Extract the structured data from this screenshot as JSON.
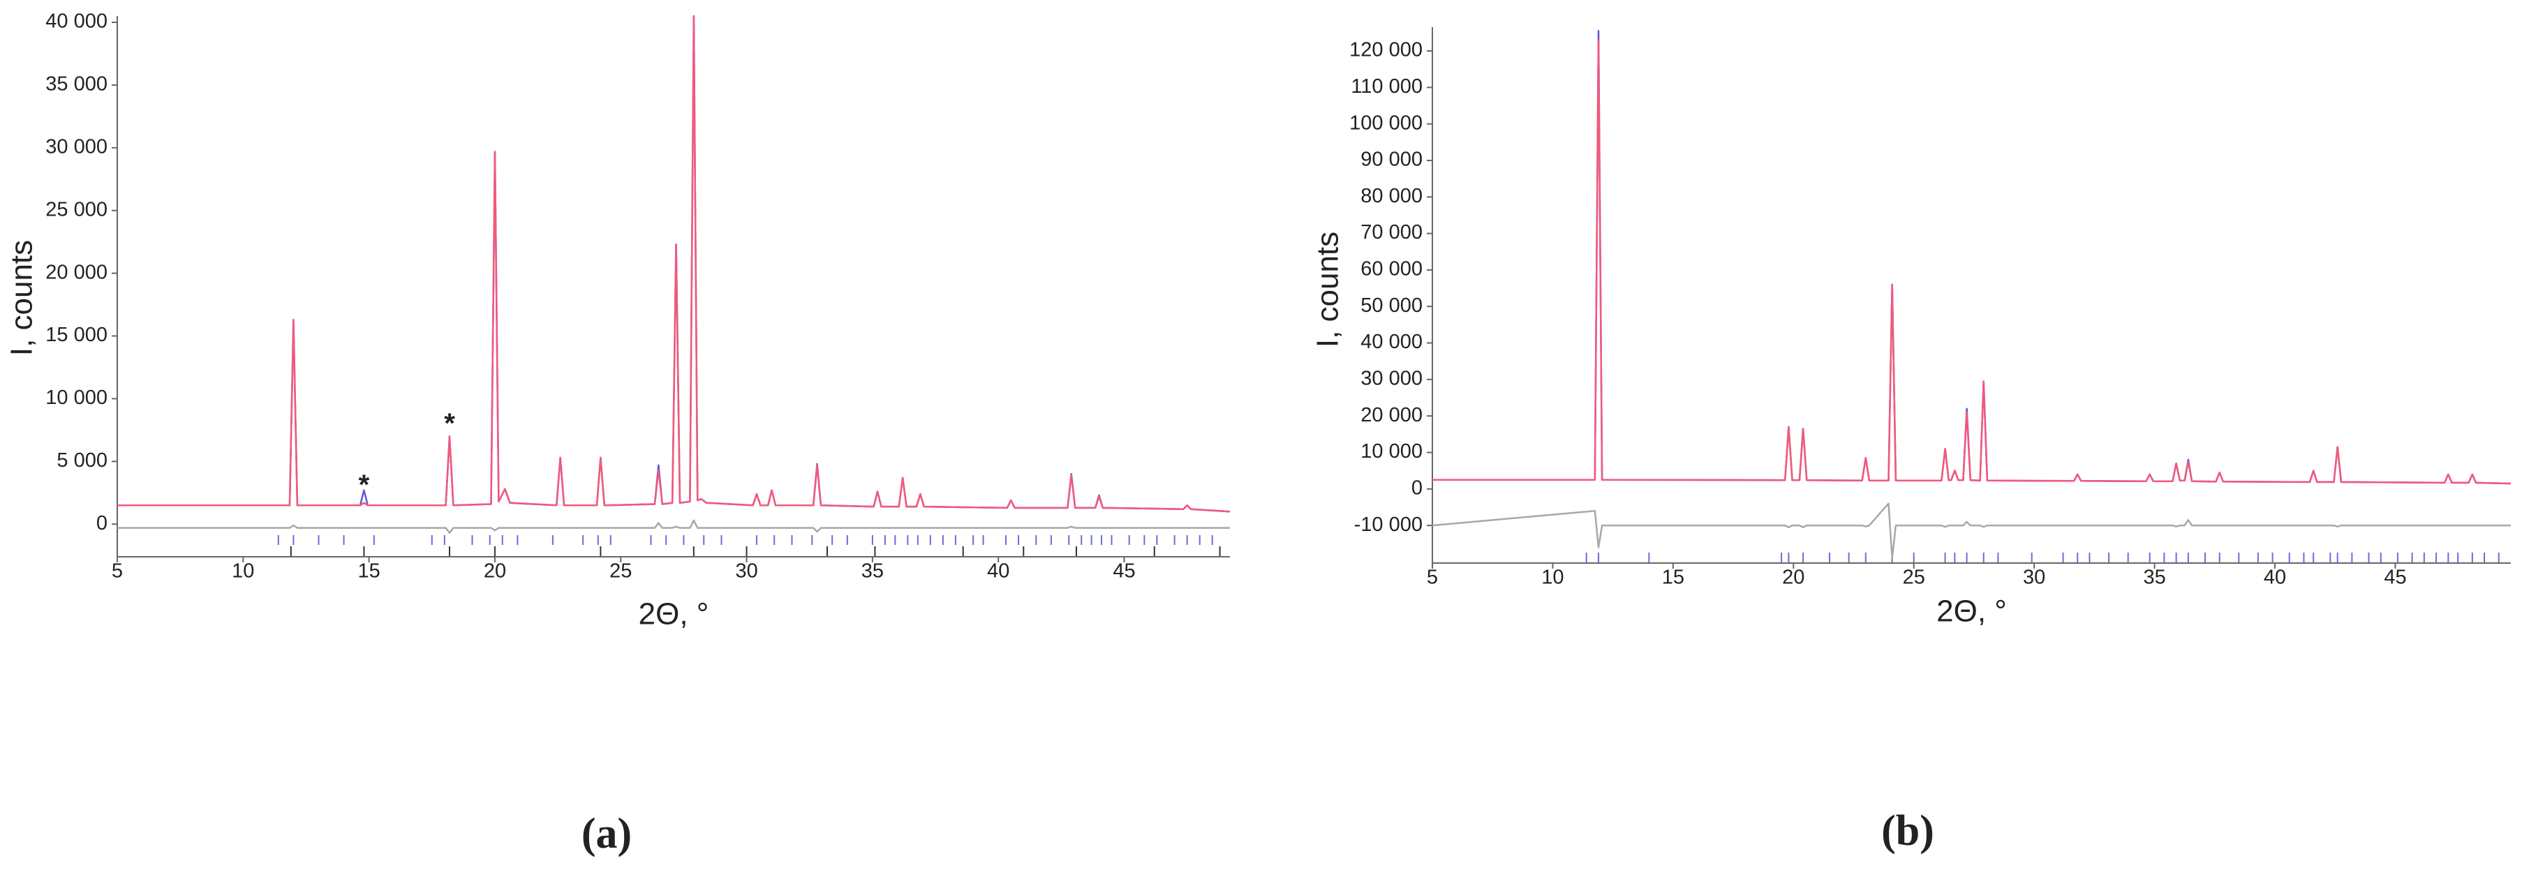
{
  "chart_data": [
    {
      "type": "line",
      "label": "(a)",
      "x_label": "2Θ, °",
      "y_label": "I, counts",
      "xlim": [
        5,
        49.2
      ],
      "xticks": [
        5,
        10,
        15,
        20,
        25,
        30,
        35,
        40,
        45
      ],
      "ylim": [
        -2600,
        40500
      ],
      "yticks": [
        0,
        {
          "value": 5000,
          "label": "5 000"
        },
        {
          "value": 10000,
          "label": "10 000"
        },
        {
          "value": 15000,
          "label": "15 000"
        },
        {
          "value": 20000,
          "label": "20 000"
        },
        {
          "value": 25000,
          "label": "25 000"
        },
        {
          "value": 30000,
          "label": "30 000"
        },
        {
          "value": 35000,
          "label": "35 000"
        },
        {
          "value": 40000,
          "label": "40 000"
        }
      ],
      "x": [
        5,
        10,
        11.85,
        12.0,
        12.15,
        14.65,
        14.8,
        14.95,
        18.05,
        18.2,
        18.35,
        19.85,
        20.0,
        20.15,
        20.4,
        20.6,
        22.45,
        22.6,
        22.75,
        24.05,
        24.2,
        24.35,
        26.35,
        26.5,
        26.65,
        27.05,
        27.2,
        27.35,
        27.75,
        27.9,
        28.05,
        28.2,
        28.4,
        30.25,
        30.4,
        30.55,
        30.85,
        31.0,
        31.15,
        32.65,
        32.8,
        32.95,
        35.05,
        35.2,
        35.35,
        36.05,
        36.2,
        36.35,
        36.75,
        36.9,
        37.05,
        40.35,
        40.5,
        40.65,
        42.75,
        42.9,
        43.05,
        43.85,
        44.0,
        44.15,
        47.35,
        47.5,
        47.65,
        49.2
      ],
      "series": [
        {
          "color": "#5a5ad8",
          "values": [
            1500,
            1500,
            1500,
            16300,
            1500,
            1500,
            2700,
            1500,
            1500,
            7000,
            1500,
            1600,
            29600,
            1800,
            2800,
            1700,
            1500,
            5300,
            1500,
            1500,
            5300,
            1500,
            1600,
            4700,
            1600,
            1700,
            22300,
            1700,
            1800,
            40500,
            1900,
            2000,
            1700,
            1500,
            2400,
            1500,
            1500,
            2700,
            1500,
            1500,
            4800,
            1500,
            1400,
            2600,
            1400,
            1400,
            3700,
            1400,
            1400,
            2400,
            1400,
            1300,
            1900,
            1300,
            1300,
            4000,
            1300,
            1300,
            2300,
            1300,
            1200,
            1500,
            1200,
            1000
          ]
        },
        {
          "color": "#f4587a",
          "values": [
            1500,
            1500,
            1500,
            16300,
            1500,
            1500,
            1700,
            1500,
            1500,
            7000,
            1500,
            1600,
            29700,
            1800,
            2800,
            1700,
            1500,
            5300,
            1500,
            1500,
            5300,
            1500,
            1600,
            4300,
            1600,
            1700,
            22300,
            1700,
            1800,
            40500,
            1900,
            2000,
            1700,
            1500,
            2400,
            1500,
            1500,
            2700,
            1500,
            1500,
            4700,
            1500,
            1400,
            2600,
            1400,
            1400,
            3700,
            1400,
            1400,
            2400,
            1400,
            1300,
            1900,
            1300,
            1300,
            3900,
            1300,
            1300,
            2200,
            1300,
            1200,
            1500,
            1200,
            1000
          ]
        },
        {
          "color": "#a8a8a8",
          "values": [
            -300,
            -300,
            -300,
            -100,
            -300,
            -300,
            -300,
            -300,
            -300,
            -700,
            -300,
            -300,
            -500,
            -300,
            -300,
            -300,
            -300,
            -300,
            -300,
            -300,
            -300,
            -300,
            -300,
            100,
            -300,
            -300,
            -200,
            -300,
            -300,
            300,
            -300,
            -300,
            -300,
            -300,
            -300,
            -300,
            -300,
            -300,
            -300,
            -300,
            -600,
            -300,
            -300,
            -300,
            -300,
            -300,
            -300,
            -300,
            -300,
            -300,
            -300,
            -300,
            -300,
            -300,
            -300,
            -200,
            -300,
            -300,
            -300,
            -300,
            -300,
            -300,
            -300,
            -300
          ]
        }
      ],
      "reflections": [
        {
          "color": "#6a6ae0",
          "x": [
            11.4,
            12.0,
            13.0,
            14.0,
            15.2,
            17.5,
            18.0,
            19.1,
            19.8,
            20.3,
            20.9,
            22.3,
            23.5,
            24.1,
            24.6,
            26.2,
            26.8,
            27.5,
            28.3,
            29.0,
            30.4,
            31.1,
            31.8,
            32.6,
            33.4,
            34.0,
            35.0,
            35.5,
            35.9,
            36.4,
            36.8,
            37.3,
            37.8,
            38.3,
            39.0,
            39.4,
            40.3,
            40.8,
            41.5,
            42.1,
            42.8,
            43.3,
            43.7,
            44.1,
            44.5,
            45.2,
            45.8,
            46.3,
            47.0,
            47.5,
            48.0,
            48.5
          ]
        },
        {
          "color": "#333333",
          "x": [
            11.9,
            14.8,
            18.2,
            20.0,
            24.2,
            27.9,
            30.0,
            33.2,
            35.1,
            38.6,
            41.0,
            43.1,
            46.2,
            48.8
          ]
        }
      ],
      "annotations": [
        {
          "text": "*",
          "x": 14.8,
          "y": 3000
        },
        {
          "text": "*",
          "x": 18.2,
          "y": 7900
        }
      ]
    },
    {
      "type": "line",
      "label": "(b)",
      "x_label": "2Θ, °",
      "y_label": "I, counts",
      "xlim": [
        5,
        49.8
      ],
      "xticks": [
        5,
        10,
        15,
        20,
        25,
        30,
        35,
        40,
        45
      ],
      "ylim": [
        -20300,
        126500
      ],
      "yticks": [
        {
          "value": -10000,
          "label": "-10 000"
        },
        0,
        {
          "value": 10000,
          "label": "10 000"
        },
        {
          "value": 20000,
          "label": "20 000"
        },
        {
          "value": 30000,
          "label": "30 000"
        },
        {
          "value": 40000,
          "label": "40 000"
        },
        {
          "value": 50000,
          "label": "50 000"
        },
        {
          "value": 60000,
          "label": "60 000"
        },
        {
          "value": 70000,
          "label": "70 000"
        },
        {
          "value": 80000,
          "label": "80 000"
        },
        {
          "value": 90000,
          "label": "90 000"
        },
        {
          "value": 100000,
          "label": "100 000"
        },
        {
          "value": 110000,
          "label": "110 000"
        },
        {
          "value": 120000,
          "label": "120 000"
        }
      ],
      "x": [
        5,
        11.75,
        11.9,
        12.05,
        19.65,
        19.8,
        19.95,
        20.25,
        20.4,
        20.55,
        22.85,
        23.0,
        23.15,
        23.95,
        24.1,
        24.25,
        26.15,
        26.3,
        26.45,
        26.55,
        26.7,
        26.85,
        27.05,
        27.2,
        27.35,
        27.75,
        27.9,
        28.05,
        31.65,
        31.8,
        31.95,
        34.65,
        34.8,
        34.95,
        35.75,
        35.9,
        36.05,
        36.25,
        36.4,
        36.55,
        37.55,
        37.7,
        37.85,
        41.45,
        41.6,
        41.75,
        42.45,
        42.6,
        42.75,
        47.05,
        47.2,
        47.35,
        48.05,
        48.2,
        48.35,
        49.8
      ],
      "series": [
        {
          "color": "#5a5ad8",
          "values": [
            2500,
            2500,
            125500,
            2500,
            2400,
            17000,
            2400,
            2400,
            16500,
            2400,
            2300,
            8500,
            2300,
            2300,
            56000,
            2300,
            2300,
            11000,
            2400,
            2400,
            5000,
            2400,
            2400,
            22000,
            2400,
            2300,
            29500,
            2300,
            2200,
            4000,
            2200,
            2100,
            4000,
            2100,
            2100,
            7000,
            2300,
            2300,
            8000,
            2100,
            2000,
            4500,
            2000,
            1900,
            5000,
            1900,
            1900,
            11500,
            1900,
            1700,
            4000,
            1700,
            1700,
            4000,
            1700,
            1500
          ]
        },
        {
          "color": "#f4587a",
          "values": [
            2500,
            2500,
            123000,
            2500,
            2400,
            17000,
            2400,
            2400,
            16500,
            2400,
            2300,
            8500,
            2300,
            2300,
            56000,
            2300,
            2300,
            11000,
            2400,
            2400,
            5000,
            2400,
            2400,
            21000,
            2400,
            2300,
            29500,
            2300,
            2200,
            4000,
            2200,
            2100,
            4000,
            2100,
            2100,
            7000,
            2300,
            2300,
            7500,
            2100,
            2000,
            4500,
            2000,
            1900,
            5000,
            1900,
            1900,
            11500,
            1900,
            1700,
            4000,
            1700,
            1700,
            4000,
            1700,
            1500
          ]
        },
        {
          "color": "#a8a8a8",
          "values": [
            -10000,
            -6000,
            -16000,
            -10000,
            -10000,
            -10500,
            -10000,
            -10000,
            -10500,
            -10000,
            -10000,
            -10300,
            -10000,
            -4000,
            -19000,
            -10000,
            -10000,
            -10400,
            -10000,
            -10000,
            -10000,
            -10000,
            -10000,
            -9000,
            -10000,
            -10000,
            -10400,
            -10000,
            -10000,
            -10000,
            -10000,
            -10000,
            -10000,
            -10000,
            -10000,
            -10300,
            -10000,
            -10000,
            -8500,
            -10000,
            -10000,
            -10000,
            -10000,
            -10000,
            -10000,
            -10000,
            -10000,
            -10300,
            -10000,
            -10000,
            -10000,
            -10000,
            -10000,
            -10000,
            -10000,
            -10000
          ]
        }
      ],
      "reflections": [
        {
          "color": "#6a6ae0",
          "x": [
            11.4,
            11.9,
            14.0,
            19.5,
            19.8,
            20.4,
            21.5,
            22.3,
            23.0,
            24.1,
            25.0,
            26.3,
            26.7,
            27.2,
            27.9,
            28.5,
            29.9,
            31.2,
            31.8,
            32.3,
            33.1,
            33.9,
            34.8,
            35.4,
            35.9,
            36.4,
            37.1,
            37.7,
            38.5,
            39.3,
            39.9,
            40.6,
            41.2,
            41.6,
            42.3,
            42.6,
            43.2,
            43.9,
            44.4,
            45.1,
            45.7,
            46.2,
            46.7,
            47.2,
            47.6,
            48.2,
            48.7,
            49.3
          ]
        }
      ]
    }
  ]
}
